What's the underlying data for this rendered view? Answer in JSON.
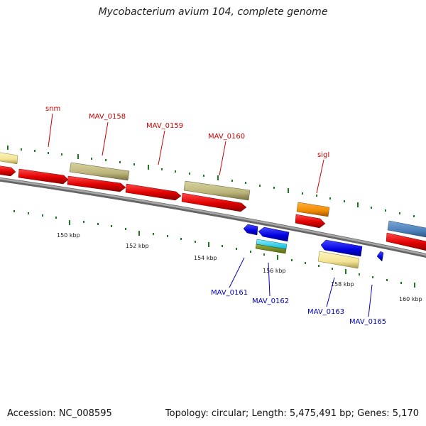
{
  "title": "Mycobacterium avium 104, complete genome",
  "footer": {
    "accession": "Accession: NC_008595",
    "topology": "Topology: circular; Length: 5,475,491 bp; Genes: 5,170"
  },
  "colors": {
    "forward_label": "#cc0000",
    "reverse_label": "#0000bb",
    "backbone": "#8a8a8a",
    "tick": "#1e7a1e"
  },
  "ticks": [
    "150 kbp",
    "152 kbp",
    "154 kbp",
    "156 kbp",
    "158 kbp",
    "160 kbp"
  ],
  "genes_forward": [
    {
      "label": "snm"
    },
    {
      "label": "MAV_0158"
    },
    {
      "label": "MAV_0159"
    },
    {
      "label": "MAV_0160"
    },
    {
      "label": "sigI"
    }
  ],
  "genes_reverse": [
    {
      "label": "MAV_0161"
    },
    {
      "label": "MAV_0162"
    },
    {
      "label": "MAV_0163"
    },
    {
      "label": "MAV_0165"
    }
  ]
}
